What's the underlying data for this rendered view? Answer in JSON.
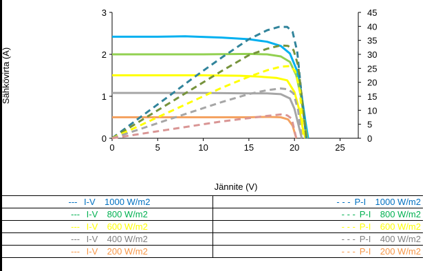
{
  "chart_data": {
    "type": "line",
    "xlabel": "Jännite (V)",
    "ylabel": "Sähkövirta (A)",
    "xlim": [
      0,
      27
    ],
    "ylim": [
      0,
      3
    ],
    "y2lim": [
      0,
      45
    ],
    "x_ticks": [
      "0",
      "5",
      "10",
      "15",
      "20",
      "25"
    ],
    "y_ticks": [
      "0",
      "1",
      "2",
      "3"
    ],
    "y2_ticks": [
      "0",
      "5",
      "10",
      "15",
      "20",
      "25",
      "30",
      "35",
      "40",
      "45"
    ],
    "grid": false,
    "legend_position": "bottom",
    "series": [
      {
        "name": "I-V  1000 W/m2",
        "kind": "I-V",
        "axis": "left",
        "color": "#00B0F0",
        "x": [
          0,
          5,
          8,
          12,
          15,
          17,
          18.5,
          19.5,
          20.3,
          20.8,
          21.2,
          21.5
        ],
        "y": [
          2.42,
          2.42,
          2.43,
          2.4,
          2.36,
          2.3,
          2.2,
          2.02,
          1.6,
          1.0,
          0.4,
          0
        ]
      },
      {
        "name": "I-V  800 W/m2",
        "kind": "I-V",
        "axis": "left",
        "color": "#92D050",
        "x": [
          0,
          5,
          10,
          15,
          17,
          18.5,
          19.5,
          20.2,
          20.7,
          21.1,
          21.4
        ],
        "y": [
          2.0,
          2.0,
          2.0,
          2.01,
          2.0,
          1.95,
          1.82,
          1.5,
          1.0,
          0.4,
          0
        ]
      },
      {
        "name": "I-V  600 W/m2",
        "kind": "I-V",
        "axis": "left",
        "color": "#FFFF00",
        "x": [
          0,
          5,
          10,
          14,
          16,
          18,
          19.2,
          20.0,
          20.5,
          20.9,
          21.2
        ],
        "y": [
          1.5,
          1.5,
          1.5,
          1.49,
          1.47,
          1.44,
          1.38,
          1.1,
          0.7,
          0.25,
          0
        ]
      },
      {
        "name": "I-V  400 W/m2",
        "kind": "I-V",
        "axis": "left",
        "color": "#A6A6A6",
        "x": [
          0,
          5,
          10,
          15,
          17,
          18.5,
          19.5,
          20.0,
          20.4,
          20.8
        ],
        "y": [
          1.08,
          1.08,
          1.08,
          1.07,
          1.07,
          1.05,
          0.95,
          0.7,
          0.35,
          0
        ]
      },
      {
        "name": "I-V  200 W/m2",
        "kind": "I-V",
        "axis": "left",
        "color": "#F4A261",
        "x": [
          0,
          5,
          10,
          15,
          17,
          18.5,
          19.3,
          19.8,
          20.2
        ],
        "y": [
          0.5,
          0.5,
          0.5,
          0.5,
          0.51,
          0.5,
          0.45,
          0.3,
          0
        ]
      },
      {
        "name": "P-I  1000 W/m2",
        "kind": "P-I",
        "axis": "right",
        "color": "#31849B",
        "x": [
          0,
          3,
          6,
          9,
          12,
          15,
          17,
          18.3,
          19.2,
          19.8,
          20.3,
          20.8,
          21.3
        ],
        "y": [
          0,
          7.3,
          14.5,
          21.8,
          28.8,
          35.4,
          38.6,
          39.8,
          39.8,
          38.0,
          31.0,
          15.0,
          0
        ]
      },
      {
        "name": "P-I  800 W/m2",
        "kind": "P-I",
        "axis": "right",
        "color": "#76933C",
        "x": [
          0,
          3,
          6,
          9,
          12,
          15,
          17,
          18.5,
          19.3,
          19.9,
          20.4,
          20.9,
          21.3
        ],
        "y": [
          0,
          6.0,
          12.0,
          18.0,
          24.0,
          29.7,
          32.0,
          33.2,
          33.0,
          31.5,
          26.0,
          12.0,
          0
        ]
      },
      {
        "name": "P-I  600 W/m2",
        "kind": "P-I",
        "axis": "right",
        "color": "#FFFF00",
        "x": [
          0,
          3,
          6,
          9,
          12,
          15,
          17,
          18.5,
          19.5,
          20.1,
          20.6,
          21.0
        ],
        "y": [
          0,
          4.5,
          9.0,
          13.5,
          18.0,
          22.0,
          24.3,
          25.6,
          25.8,
          24.0,
          17.0,
          0
        ]
      },
      {
        "name": "P-I  400 W/m2",
        "kind": "P-I",
        "axis": "right",
        "color": "#A6A6A6",
        "x": [
          0,
          3,
          6,
          9,
          12,
          15,
          17,
          18.5,
          19.3,
          19.9,
          20.4,
          20.8
        ],
        "y": [
          0,
          3.2,
          6.5,
          9.7,
          12.9,
          15.8,
          17.2,
          17.8,
          17.5,
          16.0,
          10.0,
          0
        ]
      },
      {
        "name": "P-I  200 W/m2",
        "kind": "P-I",
        "axis": "right",
        "color": "#D99594",
        "x": [
          0,
          3,
          6,
          9,
          12,
          15,
          17,
          18.5,
          19.2,
          19.7,
          20.2
        ],
        "y": [
          0,
          1.5,
          3.0,
          4.5,
          6.0,
          7.2,
          8.0,
          8.5,
          8.2,
          7.0,
          0
        ]
      }
    ]
  },
  "legend": {
    "rows": [
      {
        "left_marker": "---",
        "left_type": "I-V",
        "left_value": "1000 W/m2",
        "left_color": "#0070C0",
        "left_marker_color": "#0070C0",
        "right_marker": "- - -",
        "right_type": "P-I",
        "right_value": "1000 W/m2",
        "right_color": "#0070C0",
        "right_marker_color": "#0070C0"
      },
      {
        "left_marker": "---",
        "left_type": "I-V",
        "left_value": "800 W/m2",
        "left_color": "#00B050",
        "left_marker_color": "#00B050",
        "right_marker": "- - -",
        "right_type": "P-I",
        "right_value": "800 W/m2",
        "right_color": "#00B050",
        "right_marker_color": "#00B050"
      },
      {
        "left_marker": "---",
        "left_type": "I-V",
        "left_value": "600 W/m2",
        "left_color": "#FFFF00",
        "left_marker_color": "#FFFF00",
        "right_marker": "- - -",
        "right_type": "P-I",
        "right_value": "600 W/m2",
        "right_color": "#FFFF00",
        "right_marker_color": "#FFFF00"
      },
      {
        "left_marker": "---",
        "left_type": "I-V",
        "left_value": "400 W/m2",
        "left_color": "#7F7F7F",
        "left_marker_color": "#7F7F7F",
        "right_marker": "- - -",
        "right_type": "P-I",
        "right_value": "400 W/m2",
        "right_color": "#7F7F7F",
        "right_marker_color": "#7F7F7F"
      },
      {
        "left_marker": "---",
        "left_type": "I-V",
        "left_value": "200 W/m2",
        "left_color": "#F79646",
        "left_marker_color": "#F79646",
        "right_marker": "- - -",
        "right_type": "P-I",
        "right_value": "200 W/m2",
        "right_color": "#F79646",
        "right_marker_color": "#F79646"
      }
    ]
  }
}
